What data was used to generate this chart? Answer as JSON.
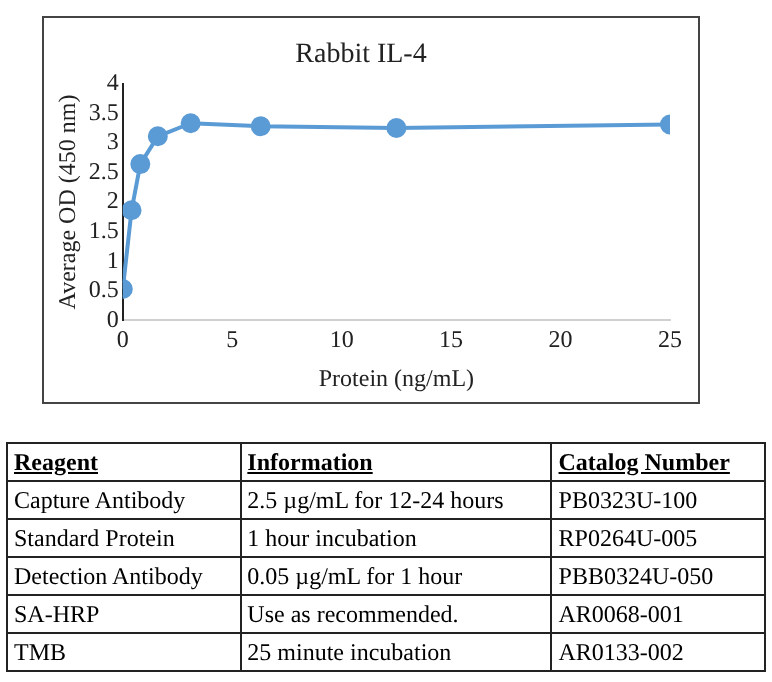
{
  "chart_data": [
    {
      "type": "line",
      "title": "Rabbit IL-4",
      "xlabel": "Protein (ng/mL)",
      "ylabel": "Average OD (450 nm)",
      "x": [
        0,
        0.4,
        0.8,
        1.6,
        3.1,
        6.3,
        12.5,
        25
      ],
      "series": [
        {
          "color": "#5b9bd5",
          "values": [
            0.53,
            1.86,
            2.64,
            3.11,
            3.33,
            3.28,
            3.25,
            3.31
          ]
        }
      ],
      "xlim": [
        0,
        25
      ],
      "xticks": [
        0,
        5,
        10,
        15,
        20,
        25
      ],
      "ylim": [
        0,
        4
      ],
      "yticks": [
        0,
        0.5,
        1,
        1.5,
        2,
        2.5,
        3,
        3.5,
        4
      ],
      "grid": false,
      "legend": false,
      "marker": "circle",
      "line_style": "solid"
    },
    {
      "type": "other",
      "annotations": [
        "Reagent",
        "Information",
        "Catalog Number",
        "Capture Antibody",
        "2.5 µg/mL for 12-24 hours",
        "PB0323U-100",
        "Standard Protein",
        "1 hour incubation",
        "RP0264U-005",
        "Detection Antibody",
        "0.05 µg/mL for 1 hour",
        "PBB0324U-050",
        "SA-HRP",
        "Use as recommended.",
        "AR0068-001",
        "TMB",
        "25 minute incubation",
        "AR0133-002"
      ]
    }
  ]
}
